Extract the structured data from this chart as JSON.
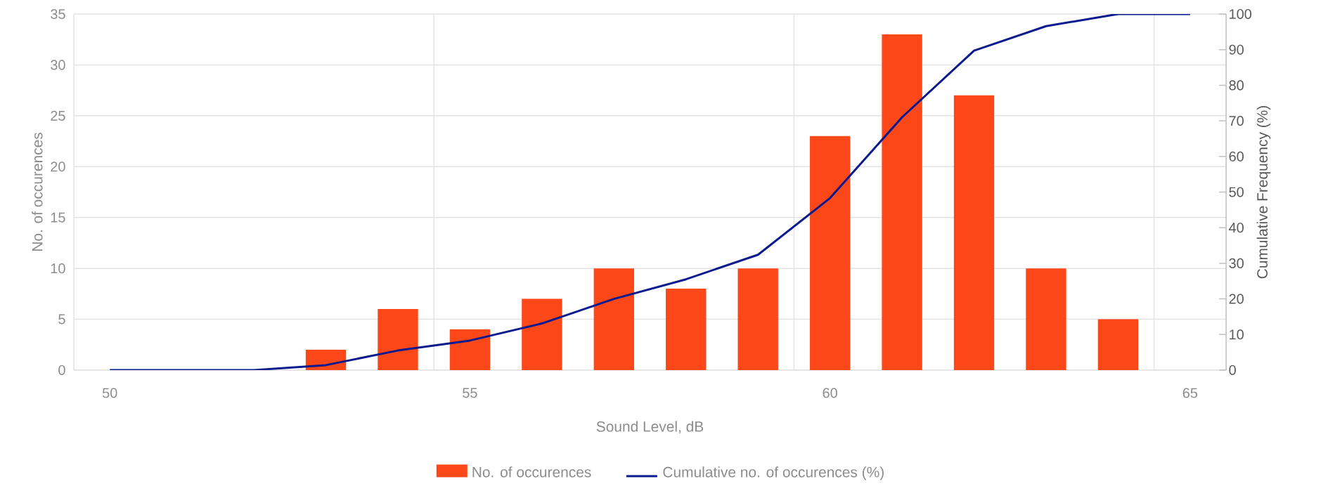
{
  "chart_data": {
    "type": "bar",
    "xlabel": "Sound Level, dB",
    "ylabel": "No. of occurences",
    "y2label": "Cumulative Frequency (%)",
    "xlim": [
      49.5,
      65.5
    ],
    "xticks": [
      50,
      55,
      60,
      65,
      {
        "value": 54.5,
        "label": null
      },
      {
        "value": 59.5,
        "label": null
      },
      {
        "value": 64.5,
        "label": null
      }
    ],
    "ylim": [
      0,
      35
    ],
    "yticks": [
      0,
      5,
      10,
      15,
      20,
      25,
      30,
      35
    ],
    "y2lim": [
      0,
      100
    ],
    "y2ticks": [
      0,
      10,
      20,
      30,
      40,
      50,
      60,
      70,
      80,
      90,
      100
    ],
    "grid": true,
    "legend": "bottom",
    "series": [
      {
        "name": "No. of occurences",
        "color": "#fc4719",
        "x": [
          53,
          54,
          55,
          56,
          57,
          58,
          59,
          60,
          61,
          62,
          63,
          64
        ],
        "values": [
          2,
          6,
          4,
          7,
          10,
          8,
          10,
          23,
          33,
          27,
          10,
          5
        ]
      },
      {
        "name": "Cumulative no. of occurences (%)",
        "type": "line",
        "axis": "y2",
        "color": "#0a1a8f",
        "x": [
          50,
          52,
          53,
          54,
          55,
          56,
          57,
          58,
          59,
          60,
          61,
          62,
          63,
          64,
          65
        ],
        "values": [
          0,
          0,
          1.4,
          5.5,
          8.3,
          13.1,
          20,
          25.5,
          32.4,
          48.3,
          71,
          89.7,
          96.6,
          100,
          100
        ]
      }
    ]
  }
}
